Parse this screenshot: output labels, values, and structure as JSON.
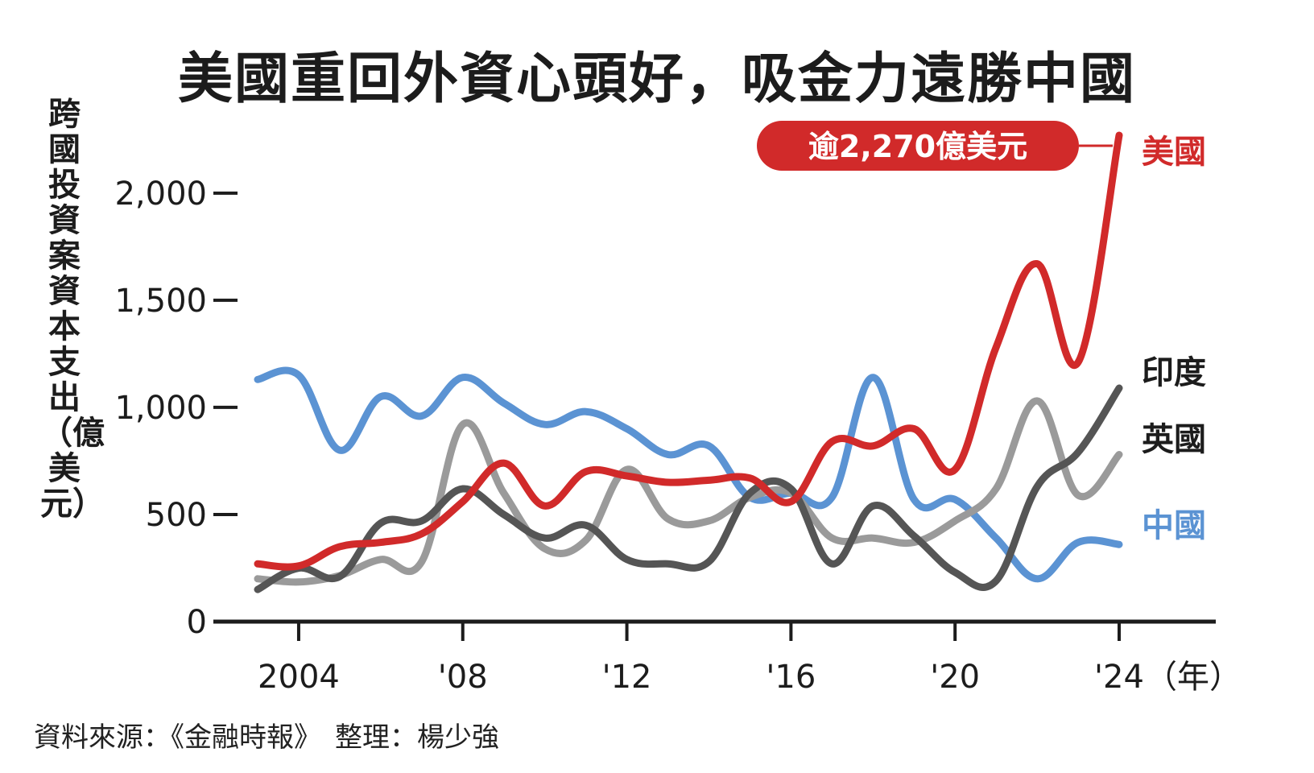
{
  "chart_data": {
    "type": "line",
    "title": "美國重回外資心頭好，吸金力遠勝中國",
    "ylabel": "跨國投資案資本支出（億美元）",
    "xunit": "（年）",
    "ylim": [
      0,
      2270
    ],
    "xlim": [
      2003,
      2024
    ],
    "yticks": [
      0,
      500,
      1000,
      1500,
      2000
    ],
    "ytick_labels": [
      "0",
      "500",
      "1,000",
      "1,500",
      "2,000"
    ],
    "xticks": [
      2004,
      2008,
      2012,
      2016,
      2020,
      2024
    ],
    "xtick_labels": [
      "2004",
      "'08",
      "'12",
      "'16",
      "'20",
      "'24"
    ],
    "x": [
      2003,
      2004,
      2005,
      2006,
      2007,
      2008,
      2009,
      2010,
      2011,
      2012,
      2013,
      2014,
      2015,
      2016,
      2017,
      2018,
      2019,
      2020,
      2021,
      2022,
      2023,
      2024
    ],
    "series": [
      {
        "name": "中國",
        "color": "#5b93d3",
        "values": [
          1130,
          1150,
          800,
          1050,
          960,
          1140,
          1020,
          920,
          980,
          900,
          780,
          820,
          580,
          600,
          580,
          1140,
          570,
          570,
          390,
          200,
          370,
          360
        ]
      },
      {
        "name": "英國",
        "color": "#9a9a9a",
        "values": [
          200,
          185,
          215,
          290,
          280,
          920,
          600,
          340,
          380,
          710,
          480,
          470,
          580,
          600,
          390,
          390,
          370,
          470,
          620,
          1030,
          590,
          780
        ]
      },
      {
        "name": "印度",
        "color": "#555555",
        "values": [
          150,
          250,
          210,
          460,
          470,
          620,
          500,
          390,
          450,
          290,
          270,
          280,
          600,
          620,
          270,
          540,
          400,
          230,
          190,
          630,
          790,
          1090
        ]
      },
      {
        "name": "美國",
        "color": "#d12a2a",
        "values": [
          270,
          260,
          350,
          370,
          410,
          560,
          740,
          540,
          700,
          680,
          650,
          660,
          670,
          560,
          840,
          820,
          900,
          710,
          1280,
          1670,
          1210,
          2270
        ]
      }
    ],
    "annotation": "逾2,270億美元",
    "annotation_color": "#d12a2a"
  },
  "source": "資料來源：《金融時報》　整理：楊少強"
}
